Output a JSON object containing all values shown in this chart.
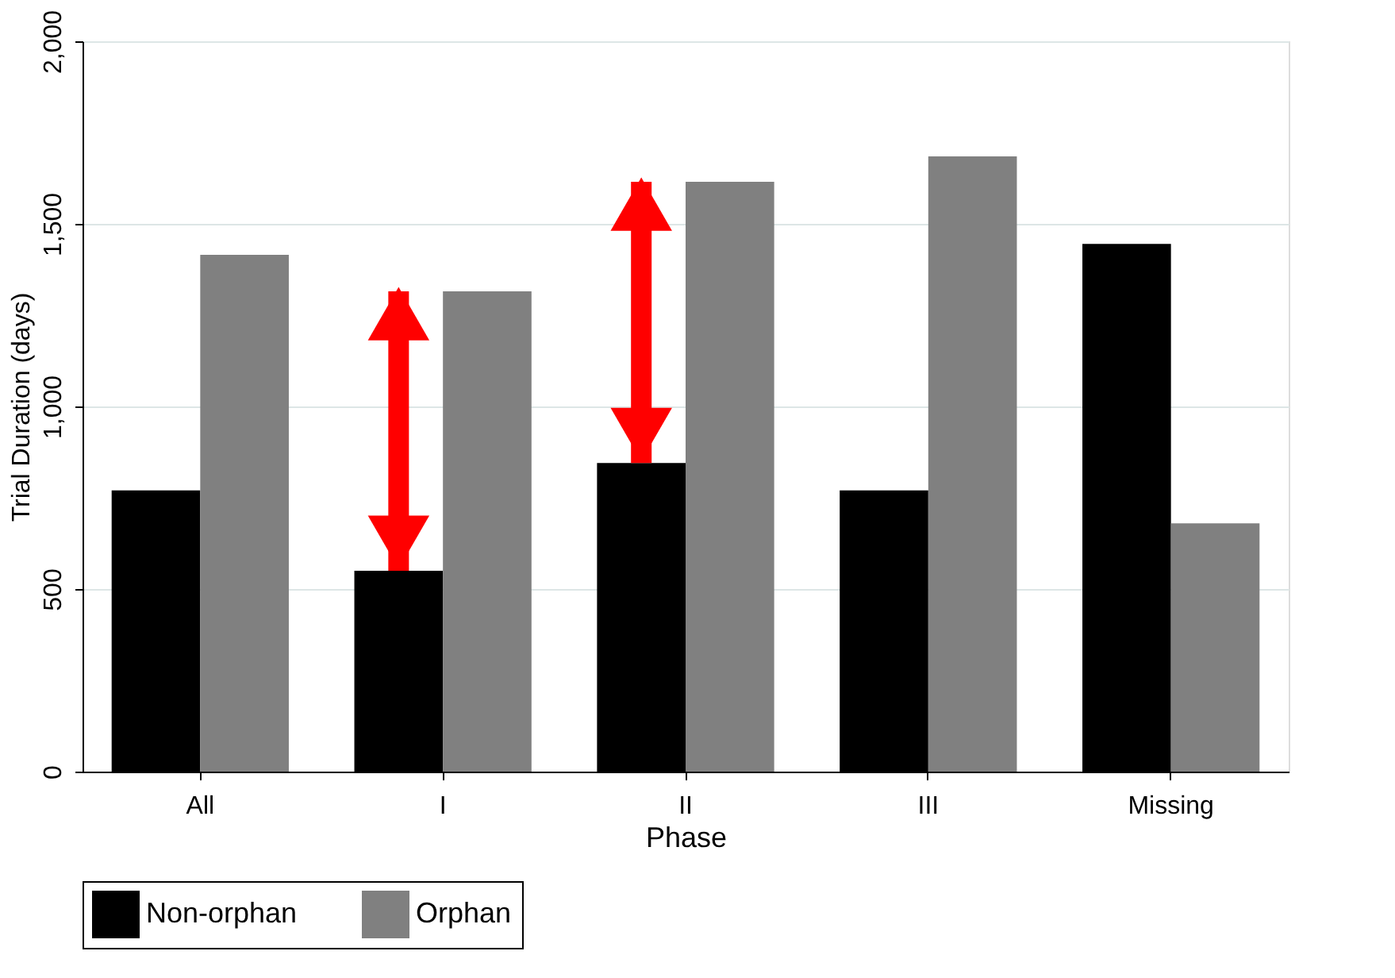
{
  "chart_data": {
    "type": "bar",
    "xlabel": "Phase",
    "ylabel": "Trial Duration (days)",
    "categories": [
      "All",
      "I",
      "II",
      "III",
      "Missing"
    ],
    "series": [
      {
        "name": "Non-orphan",
        "color": "#000000",
        "values": [
          770,
          550,
          845,
          770,
          1445
        ]
      },
      {
        "name": "Orphan",
        "color": "#808080",
        "values": [
          1415,
          1315,
          1615,
          1685,
          680
        ]
      }
    ],
    "ylim": [
      0,
      2000
    ],
    "yticks": [
      {
        "value": 0,
        "label": "0"
      },
      {
        "value": 500,
        "label": "500"
      },
      {
        "value": 1000,
        "label": "1,000"
      },
      {
        "value": 1500,
        "label": "1,500"
      },
      {
        "value": 2000,
        "label": "2,000"
      }
    ],
    "grid": "y",
    "legend": "bottom"
  }
}
